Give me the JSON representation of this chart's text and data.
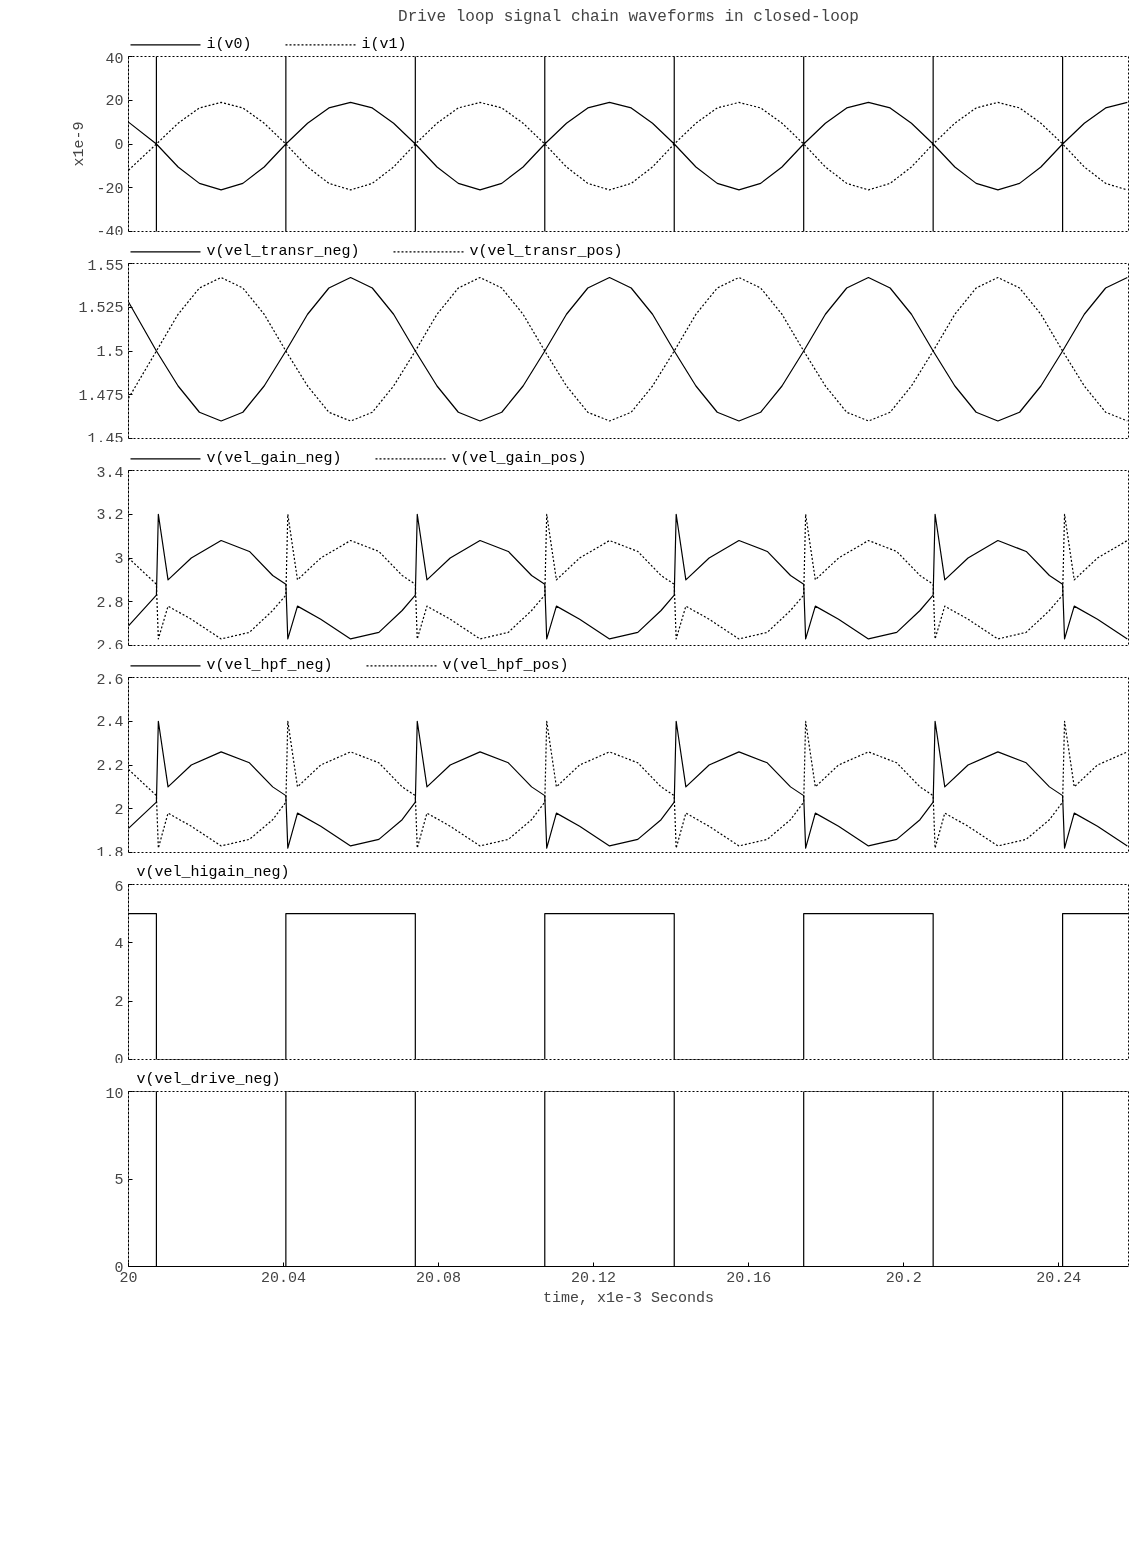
{
  "chart_data": [
    {
      "type": "line",
      "title": "Drive loop signal chain waveforms in closed-loop",
      "ylabel": "x1e-9",
      "xlim": [
        20,
        20.258
      ],
      "xticks": [
        20,
        20.04,
        20.08,
        20.12,
        20.16,
        20.2,
        20.24
      ],
      "ylim": [
        -40,
        40
      ],
      "yticks": [
        -40,
        -20,
        0,
        20,
        40
      ],
      "tick_labels": "y",
      "legend": "top left",
      "series": [
        {
          "name": "i(v0)",
          "color": "#000000",
          "line_style": "solid",
          "x": [
            20,
            20.0072,
            20.0072,
            20.0072,
            20.0072,
            20.0128,
            20.0183,
            20.0239,
            20.0295,
            20.035,
            20.0406,
            20.0406,
            20.0406,
            20.0406,
            20.0462,
            20.0517,
            20.0573,
            20.0629,
            20.0684,
            20.074,
            20.074,
            20.074,
            20.074,
            20.0796,
            20.0851,
            20.0907,
            20.0963,
            20.1018,
            20.1074,
            20.1074,
            20.1074,
            20.1074,
            20.113,
            20.1185,
            20.1241,
            20.1297,
            20.1352,
            20.1408,
            20.1408,
            20.1408,
            20.1408,
            20.1464,
            20.1519,
            20.1575,
            20.1631,
            20.1686,
            20.1742,
            20.1742,
            20.1742,
            20.1742,
            20.1798,
            20.1853,
            20.1909,
            20.1965,
            20.202,
            20.2076,
            20.2076,
            20.2076,
            20.2076,
            20.2132,
            20.2187,
            20.2243,
            20.2299,
            20.2354,
            20.241,
            20.241,
            20.241,
            20.241,
            20.2466,
            20.2521,
            20.2577
          ],
          "values": [
            10,
            0,
            40,
            -40,
            0,
            -10.5,
            -18,
            -21,
            -18,
            -10.5,
            0,
            40,
            -40,
            0,
            9.5,
            16.5,
            19,
            16.5,
            9.5,
            0,
            40,
            -40,
            0,
            -10.5,
            -18,
            -21,
            -18,
            -10.5,
            0,
            40,
            -40,
            0,
            9.5,
            16.5,
            19,
            16.5,
            9.5,
            0,
            40,
            -40,
            0,
            -10.5,
            -18,
            -21,
            -18,
            -10.5,
            0,
            40,
            -40,
            0,
            9.5,
            16.5,
            19,
            16.5,
            9.5,
            0,
            40,
            -40,
            0,
            -10.5,
            -18,
            -21,
            -18,
            -10.5,
            0,
            40,
            -40,
            0,
            9.5,
            16.5,
            19
          ]
        },
        {
          "name": "i(v1)",
          "color": "#000000",
          "line_style": "dotted",
          "x": [
            20,
            20.0072,
            20.0128,
            20.0183,
            20.0239,
            20.0295,
            20.035,
            20.0406,
            20.0462,
            20.0517,
            20.0573,
            20.0629,
            20.0684,
            20.074,
            20.0796,
            20.0851,
            20.0907,
            20.0963,
            20.1018,
            20.1074,
            20.113,
            20.1185,
            20.1241,
            20.1297,
            20.1352,
            20.1408,
            20.1464,
            20.1519,
            20.1575,
            20.1631,
            20.1686,
            20.1742,
            20.1798,
            20.1853,
            20.1909,
            20.1965,
            20.202,
            20.2076,
            20.2132,
            20.2187,
            20.2243,
            20.2299,
            20.2354,
            20.241,
            20.2466,
            20.2521,
            20.2577
          ],
          "values": [
            -12,
            0,
            9.5,
            16.5,
            19,
            16.5,
            9.5,
            0,
            -10.5,
            -18,
            -21,
            -18,
            -10.5,
            0,
            9.5,
            16.5,
            19,
            16.5,
            9.5,
            0,
            -10.5,
            -18,
            -21,
            -18,
            -10.5,
            0,
            9.5,
            16.5,
            19,
            16.5,
            9.5,
            0,
            -10.5,
            -18,
            -21,
            -18,
            -10.5,
            0,
            9.5,
            16.5,
            19,
            16.5,
            9.5,
            0,
            -10.5,
            -18,
            -21
          ]
        }
      ]
    },
    {
      "type": "line",
      "xlim": [
        20,
        20.258
      ],
      "xticks": [
        20,
        20.04,
        20.08,
        20.12,
        20.16,
        20.2,
        20.24
      ],
      "ylim": [
        1.45,
        1.55
      ],
      "yticks": [
        1.45,
        1.475,
        1.5,
        1.525,
        1.55
      ],
      "tick_labels": "y",
      "legend": "top left",
      "x": [
        20,
        20.0072,
        20.0128,
        20.0183,
        20.0239,
        20.0295,
        20.035,
        20.0406,
        20.0462,
        20.0517,
        20.0573,
        20.0629,
        20.0684,
        20.074,
        20.0796,
        20.0851,
        20.0907,
        20.0963,
        20.1018,
        20.1074,
        20.113,
        20.1185,
        20.1241,
        20.1297,
        20.1352,
        20.1408,
        20.1464,
        20.1519,
        20.1575,
        20.1631,
        20.1686,
        20.1742,
        20.1798,
        20.1853,
        20.1909,
        20.1965,
        20.202,
        20.2076,
        20.2132,
        20.2187,
        20.2243,
        20.2299,
        20.2354,
        20.241,
        20.2466,
        20.2521,
        20.2577
      ],
      "series": [
        {
          "name": "v(vel_transr_neg)",
          "color": "#000000",
          "line_style": "solid",
          "values": [
            1.528,
            1.5,
            1.48,
            1.465,
            1.46,
            1.465,
            1.48,
            1.5,
            1.521,
            1.536,
            1.542,
            1.536,
            1.521,
            1.5,
            1.48,
            1.465,
            1.46,
            1.465,
            1.48,
            1.5,
            1.521,
            1.536,
            1.542,
            1.536,
            1.521,
            1.5,
            1.48,
            1.465,
            1.46,
            1.465,
            1.48,
            1.5,
            1.521,
            1.536,
            1.542,
            1.536,
            1.521,
            1.5,
            1.48,
            1.465,
            1.46,
            1.465,
            1.48,
            1.5,
            1.521,
            1.536,
            1.542
          ]
        },
        {
          "name": "v(vel_transr_pos)",
          "color": "#000000",
          "line_style": "dotted",
          "values": [
            1.473,
            1.5,
            1.521,
            1.536,
            1.542,
            1.536,
            1.521,
            1.5,
            1.48,
            1.465,
            1.46,
            1.465,
            1.48,
            1.5,
            1.521,
            1.536,
            1.542,
            1.536,
            1.521,
            1.5,
            1.48,
            1.465,
            1.46,
            1.465,
            1.48,
            1.5,
            1.521,
            1.536,
            1.542,
            1.536,
            1.521,
            1.5,
            1.48,
            1.465,
            1.46,
            1.465,
            1.48,
            1.5,
            1.521,
            1.536,
            1.542,
            1.536,
            1.521,
            1.5,
            1.48,
            1.465,
            1.46
          ]
        }
      ]
    },
    {
      "type": "line",
      "xlim": [
        20,
        20.258
      ],
      "xticks": [
        20,
        20.04,
        20.08,
        20.12,
        20.16,
        20.2,
        20.24
      ],
      "ylim": [
        2.6,
        3.4
      ],
      "yticks": [
        2.6,
        2.8,
        3,
        3.2,
        3.4
      ],
      "tick_labels": "y",
      "legend": "top left",
      "x": [
        20,
        20.0072,
        20.0077,
        20.0102,
        20.0162,
        20.0239,
        20.0312,
        20.0372,
        20.0406,
        20.0411,
        20.0436,
        20.0496,
        20.0573,
        20.0646,
        20.0706,
        20.074,
        20.0745,
        20.077,
        20.083,
        20.0907,
        20.098,
        20.104,
        20.1074,
        20.1079,
        20.1104,
        20.1164,
        20.1241,
        20.1314,
        20.1374,
        20.1408,
        20.1413,
        20.1438,
        20.1498,
        20.1575,
        20.1648,
        20.1708,
        20.1742,
        20.1747,
        20.1772,
        20.1832,
        20.1909,
        20.1982,
        20.2042,
        20.2076,
        20.2081,
        20.2106,
        20.2166,
        20.2243,
        20.2316,
        20.2376,
        20.241,
        20.2415,
        20.244,
        20.25,
        20.2577
      ],
      "series": [
        {
          "name": "v(vel_gain_neg)",
          "color": "#000000",
          "line_style": "solid",
          "values": [
            2.69,
            2.83,
            3.2,
            2.9,
            3,
            3.08,
            3.03,
            2.92,
            2.88,
            2.63,
            2.78,
            2.72,
            2.63,
            2.66,
            2.76,
            2.83,
            3.2,
            2.9,
            3,
            3.08,
            3.03,
            2.92,
            2.88,
            2.63,
            2.78,
            2.72,
            2.63,
            2.66,
            2.76,
            2.83,
            3.2,
            2.9,
            3,
            3.08,
            3.03,
            2.92,
            2.88,
            2.63,
            2.78,
            2.72,
            2.63,
            2.66,
            2.76,
            2.83,
            3.2,
            2.9,
            3,
            3.08,
            3.03,
            2.92,
            2.88,
            2.63,
            2.78,
            2.72,
            2.63
          ]
        },
        {
          "name": "v(vel_gain_pos)",
          "color": "#000000",
          "line_style": "dotted",
          "values": [
            3,
            2.88,
            2.63,
            2.78,
            2.72,
            2.63,
            2.66,
            2.76,
            2.83,
            3.2,
            2.9,
            3,
            3.08,
            3.03,
            2.92,
            2.88,
            2.63,
            2.78,
            2.72,
            2.63,
            2.66,
            2.76,
            2.83,
            3.2,
            2.9,
            3,
            3.08,
            3.03,
            2.92,
            2.88,
            2.63,
            2.78,
            2.72,
            2.63,
            2.66,
            2.76,
            2.83,
            3.2,
            2.9,
            3,
            3.08,
            3.03,
            2.92,
            2.88,
            2.63,
            2.78,
            2.72,
            2.63,
            2.66,
            2.76,
            2.83,
            3.2,
            2.9,
            3,
            3.08
          ]
        }
      ]
    },
    {
      "type": "line",
      "xlim": [
        20,
        20.258
      ],
      "xticks": [
        20,
        20.04,
        20.08,
        20.12,
        20.16,
        20.2,
        20.24
      ],
      "ylim": [
        1.8,
        2.6
      ],
      "yticks": [
        1.8,
        2,
        2.2,
        2.4,
        2.6
      ],
      "tick_labels": "y",
      "legend": "top left",
      "x": [
        20,
        20.0072,
        20.0077,
        20.0102,
        20.0162,
        20.0239,
        20.0312,
        20.0372,
        20.0406,
        20.0411,
        20.0436,
        20.0496,
        20.0573,
        20.0646,
        20.0706,
        20.074,
        20.0745,
        20.077,
        20.083,
        20.0907,
        20.098,
        20.104,
        20.1074,
        20.1079,
        20.1104,
        20.1164,
        20.1241,
        20.1314,
        20.1374,
        20.1408,
        20.1413,
        20.1438,
        20.1498,
        20.1575,
        20.1648,
        20.1708,
        20.1742,
        20.1747,
        20.1772,
        20.1832,
        20.1909,
        20.1982,
        20.2042,
        20.2076,
        20.2081,
        20.2106,
        20.2166,
        20.2243,
        20.2316,
        20.2376,
        20.241,
        20.2415,
        20.244,
        20.25,
        20.2577
      ],
      "series": [
        {
          "name": "v(vel_hpf_neg)",
          "color": "#000000",
          "line_style": "solid",
          "values": [
            1.91,
            2.03,
            2.4,
            2.1,
            2.2,
            2.26,
            2.21,
            2.1,
            2.06,
            1.82,
            1.98,
            1.92,
            1.83,
            1.86,
            1.95,
            2.03,
            2.4,
            2.1,
            2.2,
            2.26,
            2.21,
            2.1,
            2.06,
            1.82,
            1.98,
            1.92,
            1.83,
            1.86,
            1.95,
            2.03,
            2.4,
            2.1,
            2.2,
            2.26,
            2.21,
            2.1,
            2.06,
            1.82,
            1.98,
            1.92,
            1.83,
            1.86,
            1.95,
            2.03,
            2.4,
            2.1,
            2.2,
            2.26,
            2.21,
            2.1,
            2.06,
            1.82,
            1.98,
            1.92,
            1.83
          ]
        },
        {
          "name": "v(vel_hpf_pos)",
          "color": "#000000",
          "line_style": "dotted",
          "values": [
            2.18,
            2.06,
            1.82,
            1.98,
            1.92,
            1.83,
            1.86,
            1.95,
            2.03,
            2.4,
            2.1,
            2.2,
            2.26,
            2.21,
            2.1,
            2.06,
            1.82,
            1.98,
            1.92,
            1.83,
            1.86,
            1.95,
            2.03,
            2.4,
            2.1,
            2.2,
            2.26,
            2.21,
            2.1,
            2.06,
            1.82,
            1.98,
            1.92,
            1.83,
            1.86,
            1.95,
            2.03,
            2.4,
            2.1,
            2.2,
            2.26,
            2.21,
            2.1,
            2.06,
            1.82,
            1.98,
            1.92,
            1.83,
            1.86,
            1.95,
            2.03,
            2.4,
            2.1,
            2.2,
            2.26
          ]
        }
      ]
    },
    {
      "type": "line",
      "xlim": [
        20,
        20.258
      ],
      "xticks": [
        20,
        20.04,
        20.08,
        20.12,
        20.16,
        20.2,
        20.24
      ],
      "ylim": [
        0,
        6
      ],
      "yticks": [
        0,
        2,
        4,
        6
      ],
      "tick_labels": "y",
      "legend": "top left",
      "x": [
        20,
        20.0072,
        20.0072,
        20.0406,
        20.0406,
        20.074,
        20.074,
        20.1074,
        20.1074,
        20.1408,
        20.1408,
        20.1742,
        20.1742,
        20.2076,
        20.2076,
        20.241,
        20.241,
        20.258
      ],
      "series": [
        {
          "name": "v(vel_higain_neg)",
          "color": "#000000",
          "line_style": "solid",
          "values": [
            5,
            5,
            0,
            0,
            5,
            5,
            0,
            0,
            5,
            5,
            0,
            0,
            5,
            5,
            0,
            0,
            5,
            5
          ]
        }
      ]
    },
    {
      "type": "line",
      "xlabel": "time, x1e-3 Seconds",
      "xlim": [
        20,
        20.258
      ],
      "xticks": [
        20,
        20.04,
        20.08,
        20.12,
        20.16,
        20.2,
        20.24
      ],
      "ylim": [
        0,
        10
      ],
      "yticks": [
        0,
        5,
        10
      ],
      "legend": "top left",
      "x": [
        20,
        20.0072,
        20.0072,
        20.0406,
        20.0406,
        20.074,
        20.074,
        20.1074,
        20.1074,
        20.1408,
        20.1408,
        20.1742,
        20.1742,
        20.2076,
        20.2076,
        20.241,
        20.241,
        20.258
      ],
      "series": [
        {
          "name": "v(vel_drive_neg)",
          "color": "#000000",
          "line_style": "solid",
          "values": [
            10,
            10,
            0,
            0,
            10,
            10,
            0,
            0,
            10,
            10,
            0,
            0,
            10,
            10,
            0,
            0,
            10,
            10
          ]
        }
      ]
    }
  ]
}
